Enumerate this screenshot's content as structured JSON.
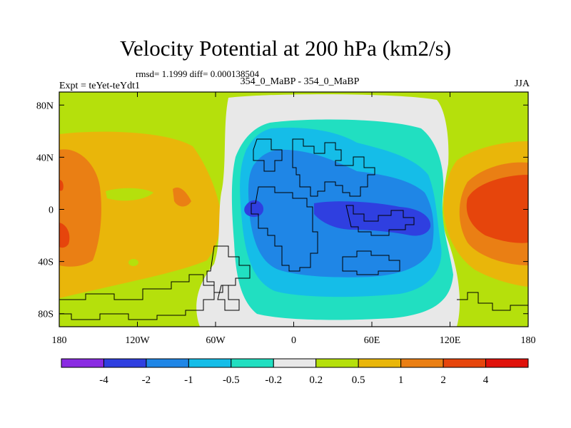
{
  "chart_data": {
    "type": "heatmap",
    "title": "Velocity Potential at 200 hPa (km2/s)",
    "stats_text": "rmsd= 1.1999 diff= 0.000138504",
    "experiment_label": "Expt = teYet-teYdt1",
    "comparison_label": "354_0_MaBP - 354_0_MaBP",
    "season_label": "JJA",
    "x_axis": {
      "range": [
        -180,
        180
      ],
      "ticks": [
        -180,
        -120,
        -60,
        0,
        60,
        120,
        180
      ],
      "tick_labels": [
        "180",
        "120W",
        "60W",
        "0",
        "60E",
        "120E",
        "180"
      ]
    },
    "y_axis": {
      "range": [
        -90,
        90
      ],
      "ticks": [
        80,
        40,
        0,
        -40,
        -80
      ],
      "tick_labels": [
        "80N",
        "40N",
        "0",
        "40S",
        "80S"
      ]
    },
    "colorbar": {
      "colors": [
        "#8a2be2",
        "#2f3fe0",
        "#1f86e6",
        "#15bde8",
        "#21dfc1",
        "#e8e8e8",
        "#b5e00c",
        "#e9b60a",
        "#ea7f14",
        "#e6450c",
        "#e0120b"
      ],
      "labels": [
        "-4",
        "-2",
        "-1",
        "-0.5",
        "-0.2",
        "0.2",
        "0.5",
        "1",
        "2",
        "4"
      ]
    },
    "regions": [
      {
        "level": "0.5 to 1",
        "value": 0.75,
        "lon_range": [
          -180,
          -60
        ],
        "lat_range": [
          -65,
          70
        ]
      },
      {
        "level": "1 to 2",
        "value": 1.5,
        "lon_range": [
          -180,
          -140
        ],
        "lat_range": [
          -50,
          55
        ]
      },
      {
        "level": "2 to 4",
        "value": 3,
        "lon_range": [
          -180,
          -170
        ],
        "lat_range": [
          -30,
          -15
        ]
      },
      {
        "level": "-0.2 to 0.2",
        "value": 0,
        "lon_range": [
          -50,
          110
        ],
        "lat_range": [
          -80,
          85
        ]
      },
      {
        "level": "-0.5 to -0.2",
        "value": -0.35,
        "lon_range": [
          -40,
          105
        ],
        "lat_range": [
          -70,
          70
        ]
      },
      {
        "level": "-1 to -0.5",
        "value": -0.75,
        "lon_range": [
          -35,
          100
        ],
        "lat_range": [
          -55,
          60
        ]
      },
      {
        "level": "-2 to -1",
        "value": -1.5,
        "lon_range": [
          -30,
          100
        ],
        "lat_range": [
          -45,
          40
        ]
      },
      {
        "level": "-4 to -2",
        "value": -3,
        "lon_range": [
          10,
          90
        ],
        "lat_range": [
          -15,
          5
        ]
      },
      {
        "level": "0.5 to 1",
        "value": 0.75,
        "lon_range": [
          130,
          180
        ],
        "lat_range": [
          -60,
          70
        ]
      },
      {
        "level": "1 to 2",
        "value": 1.5,
        "lon_range": [
          135,
          180
        ],
        "lat_range": [
          -35,
          35
        ]
      },
      {
        "level": "2 to 4",
        "value": 3,
        "lon_range": [
          140,
          180
        ],
        "lat_range": [
          -25,
          20
        ]
      }
    ]
  }
}
